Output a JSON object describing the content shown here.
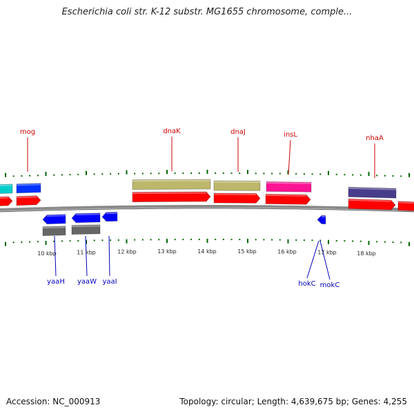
{
  "title": "Escherichia coli str. K-12 substr. MG1655 chromosome, comple...",
  "footer": {
    "accession": "Accession: NC_000913",
    "summary": "Topology: circular; Length: 4,639,675 bp; Genes: 4,255"
  },
  "colors": {
    "forward_gene": "#ff0000",
    "reverse_gene": "#0000ff",
    "forward_label": "#cc0000",
    "reverse_label": "#0000bb",
    "tick": "#006600",
    "backbone": "#8a8a8a"
  },
  "scale": {
    "unit": "kbp",
    "ticks": [
      "10 kbp",
      "11 kbp",
      "12 kbp",
      "13 kbp",
      "14 kbp",
      "15 kbp",
      "16 kbp",
      "17 kbp",
      "18 kbp"
    ]
  },
  "forward_labels": [
    "mog",
    "dnaK",
    "dnaJ",
    "insL",
    "nhaA"
  ],
  "reverse_labels": [
    "yaaH",
    "yaaW",
    "yaaI",
    "hokC",
    "mokC"
  ]
}
